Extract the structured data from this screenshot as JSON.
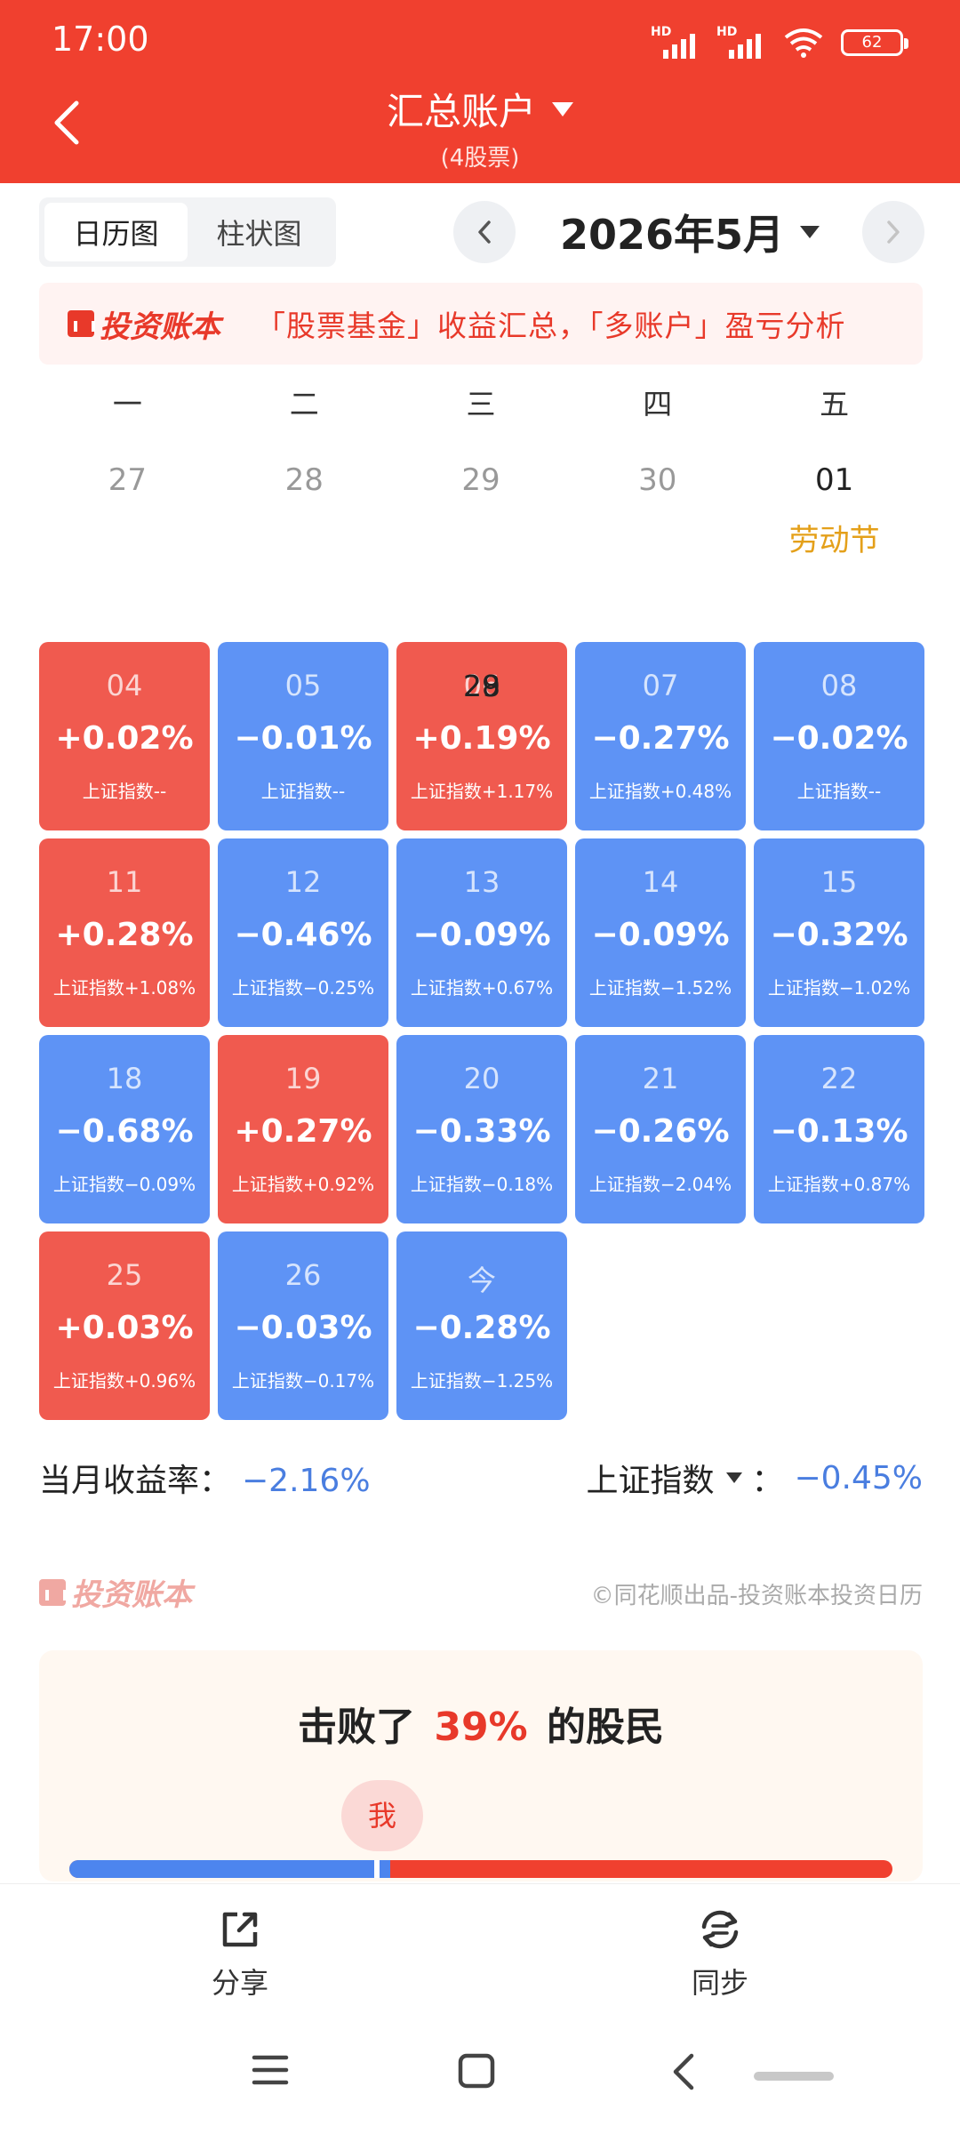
{
  "status_bar": {
    "time": "17:00",
    "signal1_label": "HD",
    "signal2_label": "HD",
    "battery": "62",
    "icons": [
      "hd-signal-icon",
      "hd-signal-icon",
      "wifi-icon",
      "battery-icon"
    ]
  },
  "header": {
    "title": "汇总账户",
    "subtitle": "(4股票)"
  },
  "toolbar": {
    "tabs": [
      "日历图",
      "柱状图"
    ],
    "active_tab": "日历图",
    "month": "2026年5月"
  },
  "banner": {
    "brand": "投资账本",
    "text": "「股票基金」收益汇总，「多账户」盈亏分析"
  },
  "calendar": {
    "weekdays": [
      "一",
      "二",
      "三",
      "四",
      "五"
    ],
    "first_row": [
      {
        "day": "27",
        "note": ""
      },
      {
        "day": "28",
        "note": ""
      },
      {
        "day": "29",
        "note": ""
      },
      {
        "day": "30",
        "note": ""
      },
      {
        "day": "01",
        "note": "劳动节"
      }
    ],
    "cells": [
      {
        "day": "04",
        "pct": "+0.02%",
        "index": "上证指数--",
        "trend": "up"
      },
      {
        "day": "05",
        "pct": "−0.01%",
        "index": "上证指数--",
        "trend": "down"
      },
      {
        "day": "06",
        "pct": "+0.19%",
        "index": "上证指数+1.17%",
        "trend": "up"
      },
      {
        "day": "07",
        "pct": "−0.27%",
        "index": "上证指数+0.48%",
        "trend": "down"
      },
      {
        "day": "08",
        "pct": "−0.02%",
        "index": "上证指数--",
        "trend": "down"
      },
      {
        "day": "11",
        "pct": "+0.28%",
        "index": "上证指数+1.08%",
        "trend": "up"
      },
      {
        "day": "12",
        "pct": "−0.46%",
        "index": "上证指数−0.25%",
        "trend": "down"
      },
      {
        "day": "13",
        "pct": "−0.09%",
        "index": "上证指数+0.67%",
        "trend": "down"
      },
      {
        "day": "14",
        "pct": "−0.09%",
        "index": "上证指数−1.52%",
        "trend": "down"
      },
      {
        "day": "15",
        "pct": "−0.32%",
        "index": "上证指数−1.02%",
        "trend": "down"
      },
      {
        "day": "18",
        "pct": "−0.68%",
        "index": "上证指数−0.09%",
        "trend": "down"
      },
      {
        "day": "19",
        "pct": "+0.27%",
        "index": "上证指数+0.92%",
        "trend": "up"
      },
      {
        "day": "20",
        "pct": "−0.33%",
        "index": "上证指数−0.18%",
        "trend": "down"
      },
      {
        "day": "21",
        "pct": "−0.26%",
        "index": "上证指数−2.04%",
        "trend": "down"
      },
      {
        "day": "22",
        "pct": "−0.13%",
        "index": "上证指数+0.87%",
        "trend": "down"
      },
      {
        "day": "25",
        "pct": "+0.03%",
        "index": "上证指数+0.96%",
        "trend": "up"
      },
      {
        "day": "26",
        "pct": "−0.03%",
        "index": "上证指数−0.17%",
        "trend": "down"
      },
      {
        "day": "今",
        "pct": "−0.28%",
        "index": "上证指数−1.25%",
        "trend": "down"
      },
      {
        "day": "28",
        "pct": "",
        "index": "",
        "trend": "none"
      },
      {
        "day": "29",
        "pct": "",
        "index": "",
        "trend": "none"
      }
    ]
  },
  "summary": {
    "month_label": "当月收益率：",
    "month_value": "−2.16%",
    "index_label": "上证指数",
    "index_colon": "：",
    "index_value": "−0.45%"
  },
  "footer_brand": {
    "brand": "投资账本",
    "copyright": "©同花顺出品-投资账本投资日历"
  },
  "rank": {
    "prefix": "击败了",
    "value": "39%",
    "suffix": "的股民",
    "me": "我",
    "beat_fraction": 0.39,
    "me_fraction": 0.37
  },
  "actions": {
    "share": "分享",
    "sync": "同步"
  },
  "colors": {
    "header_red": "#f0402f",
    "up_red": "#f05a4f",
    "down_blue": "#5e93f5",
    "holiday_gold": "#e4a01a",
    "value_blue": "#4a7ee0"
  }
}
